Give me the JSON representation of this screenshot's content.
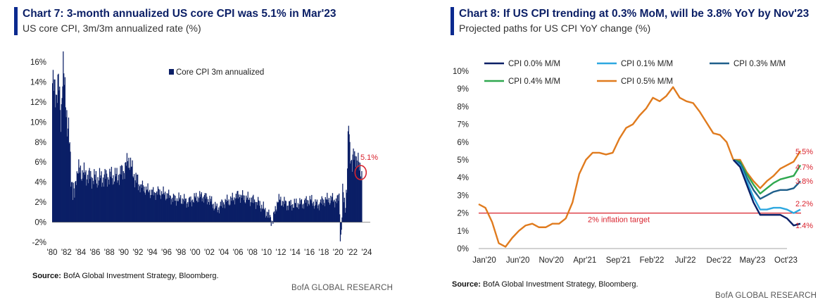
{
  "charts": {
    "left": {
      "title": "Chart 7: 3-month annualized US core CPI was 5.1% in Mar'23",
      "subtitle": "US core CPI, 3m/3m annualized rate (%)",
      "source_label": "Source:",
      "source_text": "BofA Global Investment Strategy, Bloomberg.",
      "brand": "BofA GLOBAL RESEARCH"
    },
    "right": {
      "title": "Chart 8: If US CPI trending at 0.3% MoM, will be 3.8% YoY by Nov'23",
      "subtitle": "Projected paths for US CPI YoY change (%)",
      "source_label": "Source:",
      "source_text": "BofA Global Investment Strategy, Bloomberg.",
      "brand": "BofA GLOBAL RESEARCH"
    }
  },
  "chart_data": [
    {
      "type": "bar",
      "title": "Chart 7: 3-month annualized US core CPI was 5.1% in Mar'23",
      "subtitle": "US core CPI, 3m/3m annualized rate (%)",
      "legend": "Core CPI 3m annualized",
      "legend_position": "top-center",
      "xlim": [
        1980,
        2024.5
      ],
      "ylim": [
        -2,
        16
      ],
      "yticks": [
        "16%",
        "14%",
        "12%",
        "10%",
        "8%",
        "6%",
        "4%",
        "2%",
        "0%",
        "-2%"
      ],
      "xticks": [
        "'80",
        "'82",
        "'84",
        "'86",
        "'88",
        "'90",
        "'92",
        "'94",
        "'96",
        "'98",
        "'00",
        "'02",
        "'04",
        "'06",
        "'08",
        "'10",
        "'12",
        "'14",
        "'16",
        "'18",
        "'20",
        "'22",
        "'24"
      ],
      "annotation": {
        "label": "5.1%",
        "x": 2023.25,
        "y": 5.1,
        "color": "#d9232e"
      },
      "bar_color": "#0b1f66",
      "anchors": [
        [
          1980.0,
          13.0
        ],
        [
          1980.3,
          14.5
        ],
        [
          1980.6,
          12.0
        ],
        [
          1980.9,
          14.2
        ],
        [
          1981.2,
          10.5
        ],
        [
          1981.5,
          15.0
        ],
        [
          1981.8,
          13.5
        ],
        [
          1982.1,
          9.0
        ],
        [
          1982.4,
          8.0
        ],
        [
          1982.7,
          4.0
        ],
        [
          1983.0,
          2.0
        ],
        [
          1983.3,
          4.8
        ],
        [
          1983.6,
          5.2
        ],
        [
          1984.0,
          5.0
        ],
        [
          1985.0,
          4.6
        ],
        [
          1986.0,
          4.3
        ],
        [
          1987.0,
          4.4
        ],
        [
          1988.0,
          4.6
        ],
        [
          1989.0,
          4.5
        ],
        [
          1990.0,
          5.2
        ],
        [
          1990.7,
          6.3
        ],
        [
          1991.2,
          5.0
        ],
        [
          1992.0,
          3.8
        ],
        [
          1993.0,
          3.3
        ],
        [
          1994.0,
          2.9
        ],
        [
          1995.0,
          3.0
        ],
        [
          1996.0,
          2.7
        ],
        [
          1997.0,
          2.3
        ],
        [
          1998.0,
          2.3
        ],
        [
          1999.0,
          2.0
        ],
        [
          2000.0,
          2.4
        ],
        [
          2001.0,
          2.6
        ],
        [
          2002.0,
          2.2
        ],
        [
          2003.0,
          1.3
        ],
        [
          2004.0,
          2.0
        ],
        [
          2005.0,
          2.2
        ],
        [
          2006.0,
          2.7
        ],
        [
          2007.0,
          2.4
        ],
        [
          2008.0,
          2.2
        ],
        [
          2009.0,
          1.8
        ],
        [
          2010.0,
          0.9
        ],
        [
          2010.8,
          0.1
        ],
        [
          2011.5,
          2.2
        ],
        [
          2012.0,
          2.1
        ],
        [
          2013.0,
          1.7
        ],
        [
          2014.0,
          1.8
        ],
        [
          2015.0,
          1.9
        ],
        [
          2016.0,
          2.2
        ],
        [
          2017.0,
          1.7
        ],
        [
          2018.0,
          2.2
        ],
        [
          2019.0,
          2.3
        ],
        [
          2019.8,
          2.1
        ],
        [
          2020.1,
          2.6
        ],
        [
          2020.3,
          -1.8
        ],
        [
          2020.45,
          -0.5
        ],
        [
          2020.6,
          3.0
        ],
        [
          2020.9,
          1.7
        ],
        [
          2021.2,
          3.5
        ],
        [
          2021.4,
          10.0
        ],
        [
          2021.6,
          7.5
        ],
        [
          2021.9,
          5.5
        ],
        [
          2022.1,
          6.5
        ],
        [
          2022.4,
          6.8
        ],
        [
          2022.6,
          6.2
        ],
        [
          2022.9,
          5.4
        ],
        [
          2023.1,
          5.2
        ],
        [
          2023.25,
          5.1
        ]
      ]
    },
    {
      "type": "line",
      "title": "Chart 8: If US CPI trending at 0.3% MoM, will be 3.8% YoY by Nov'23",
      "subtitle": "Projected paths for US CPI YoY change (%)",
      "xticks": [
        "Jan'20",
        "Jun'20",
        "Nov'20",
        "Apr'21",
        "Sep'21",
        "Feb'22",
        "Jul'22",
        "Dec'22",
        "May'23",
        "Oct'23"
      ],
      "yticks": [
        "10%",
        "9%",
        "8%",
        "7%",
        "6%",
        "5%",
        "4%",
        "3%",
        "2%",
        "1%",
        "0%"
      ],
      "ylim": [
        0,
        10
      ],
      "x_start": "Jan'20",
      "legend_position": "top",
      "reference_line": {
        "label": "2% inflation target",
        "y": 2,
        "color": "#d9232e"
      },
      "history_color": "#e07b1e",
      "history": [
        2.5,
        2.3,
        1.5,
        0.3,
        0.1,
        0.6,
        1.0,
        1.3,
        1.4,
        1.2,
        1.2,
        1.4,
        1.4,
        1.7,
        2.6,
        4.2,
        5.0,
        5.4,
        5.4,
        5.3,
        5.4,
        6.2,
        6.8,
        7.0,
        7.5,
        7.9,
        8.5,
        8.3,
        8.6,
        9.1,
        8.5,
        8.3,
        8.2,
        7.7,
        7.1,
        6.5,
        6.4,
        6.0,
        5.0
      ],
      "series": [
        {
          "name": "CPI 0.0% M/M",
          "color": "#0b1f66",
          "values": [
            5.0,
            4.6,
            3.6,
            2.6,
            1.9,
            1.9,
            1.9,
            1.9,
            1.7,
            1.3,
            1.4
          ],
          "end_label": "1.4%"
        },
        {
          "name": "CPI 0.1% M/M",
          "color": "#2ea8e0",
          "values": [
            5.0,
            4.7,
            3.8,
            2.9,
            2.2,
            2.2,
            2.3,
            2.3,
            2.2,
            2.0,
            2.2
          ],
          "end_label": "2.2%"
        },
        {
          "name": "CPI 0.3% M/M",
          "color": "#1f5f8b",
          "values": [
            5.0,
            4.8,
            4.0,
            3.3,
            2.8,
            3.0,
            3.2,
            3.3,
            3.3,
            3.4,
            3.8
          ],
          "end_label": "3.8%"
        },
        {
          "name": "CPI 0.4% M/M",
          "color": "#2fa84f",
          "values": [
            5.0,
            4.9,
            4.2,
            3.6,
            3.1,
            3.4,
            3.7,
            3.9,
            4.0,
            4.1,
            4.7
          ],
          "end_label": "4.7%"
        },
        {
          "name": "CPI 0.5% M/M",
          "color": "#e07b1e",
          "values": [
            5.0,
            5.0,
            4.3,
            3.8,
            3.4,
            3.8,
            4.1,
            4.5,
            4.7,
            4.9,
            5.5
          ],
          "end_label": "5.5%"
        }
      ]
    }
  ]
}
